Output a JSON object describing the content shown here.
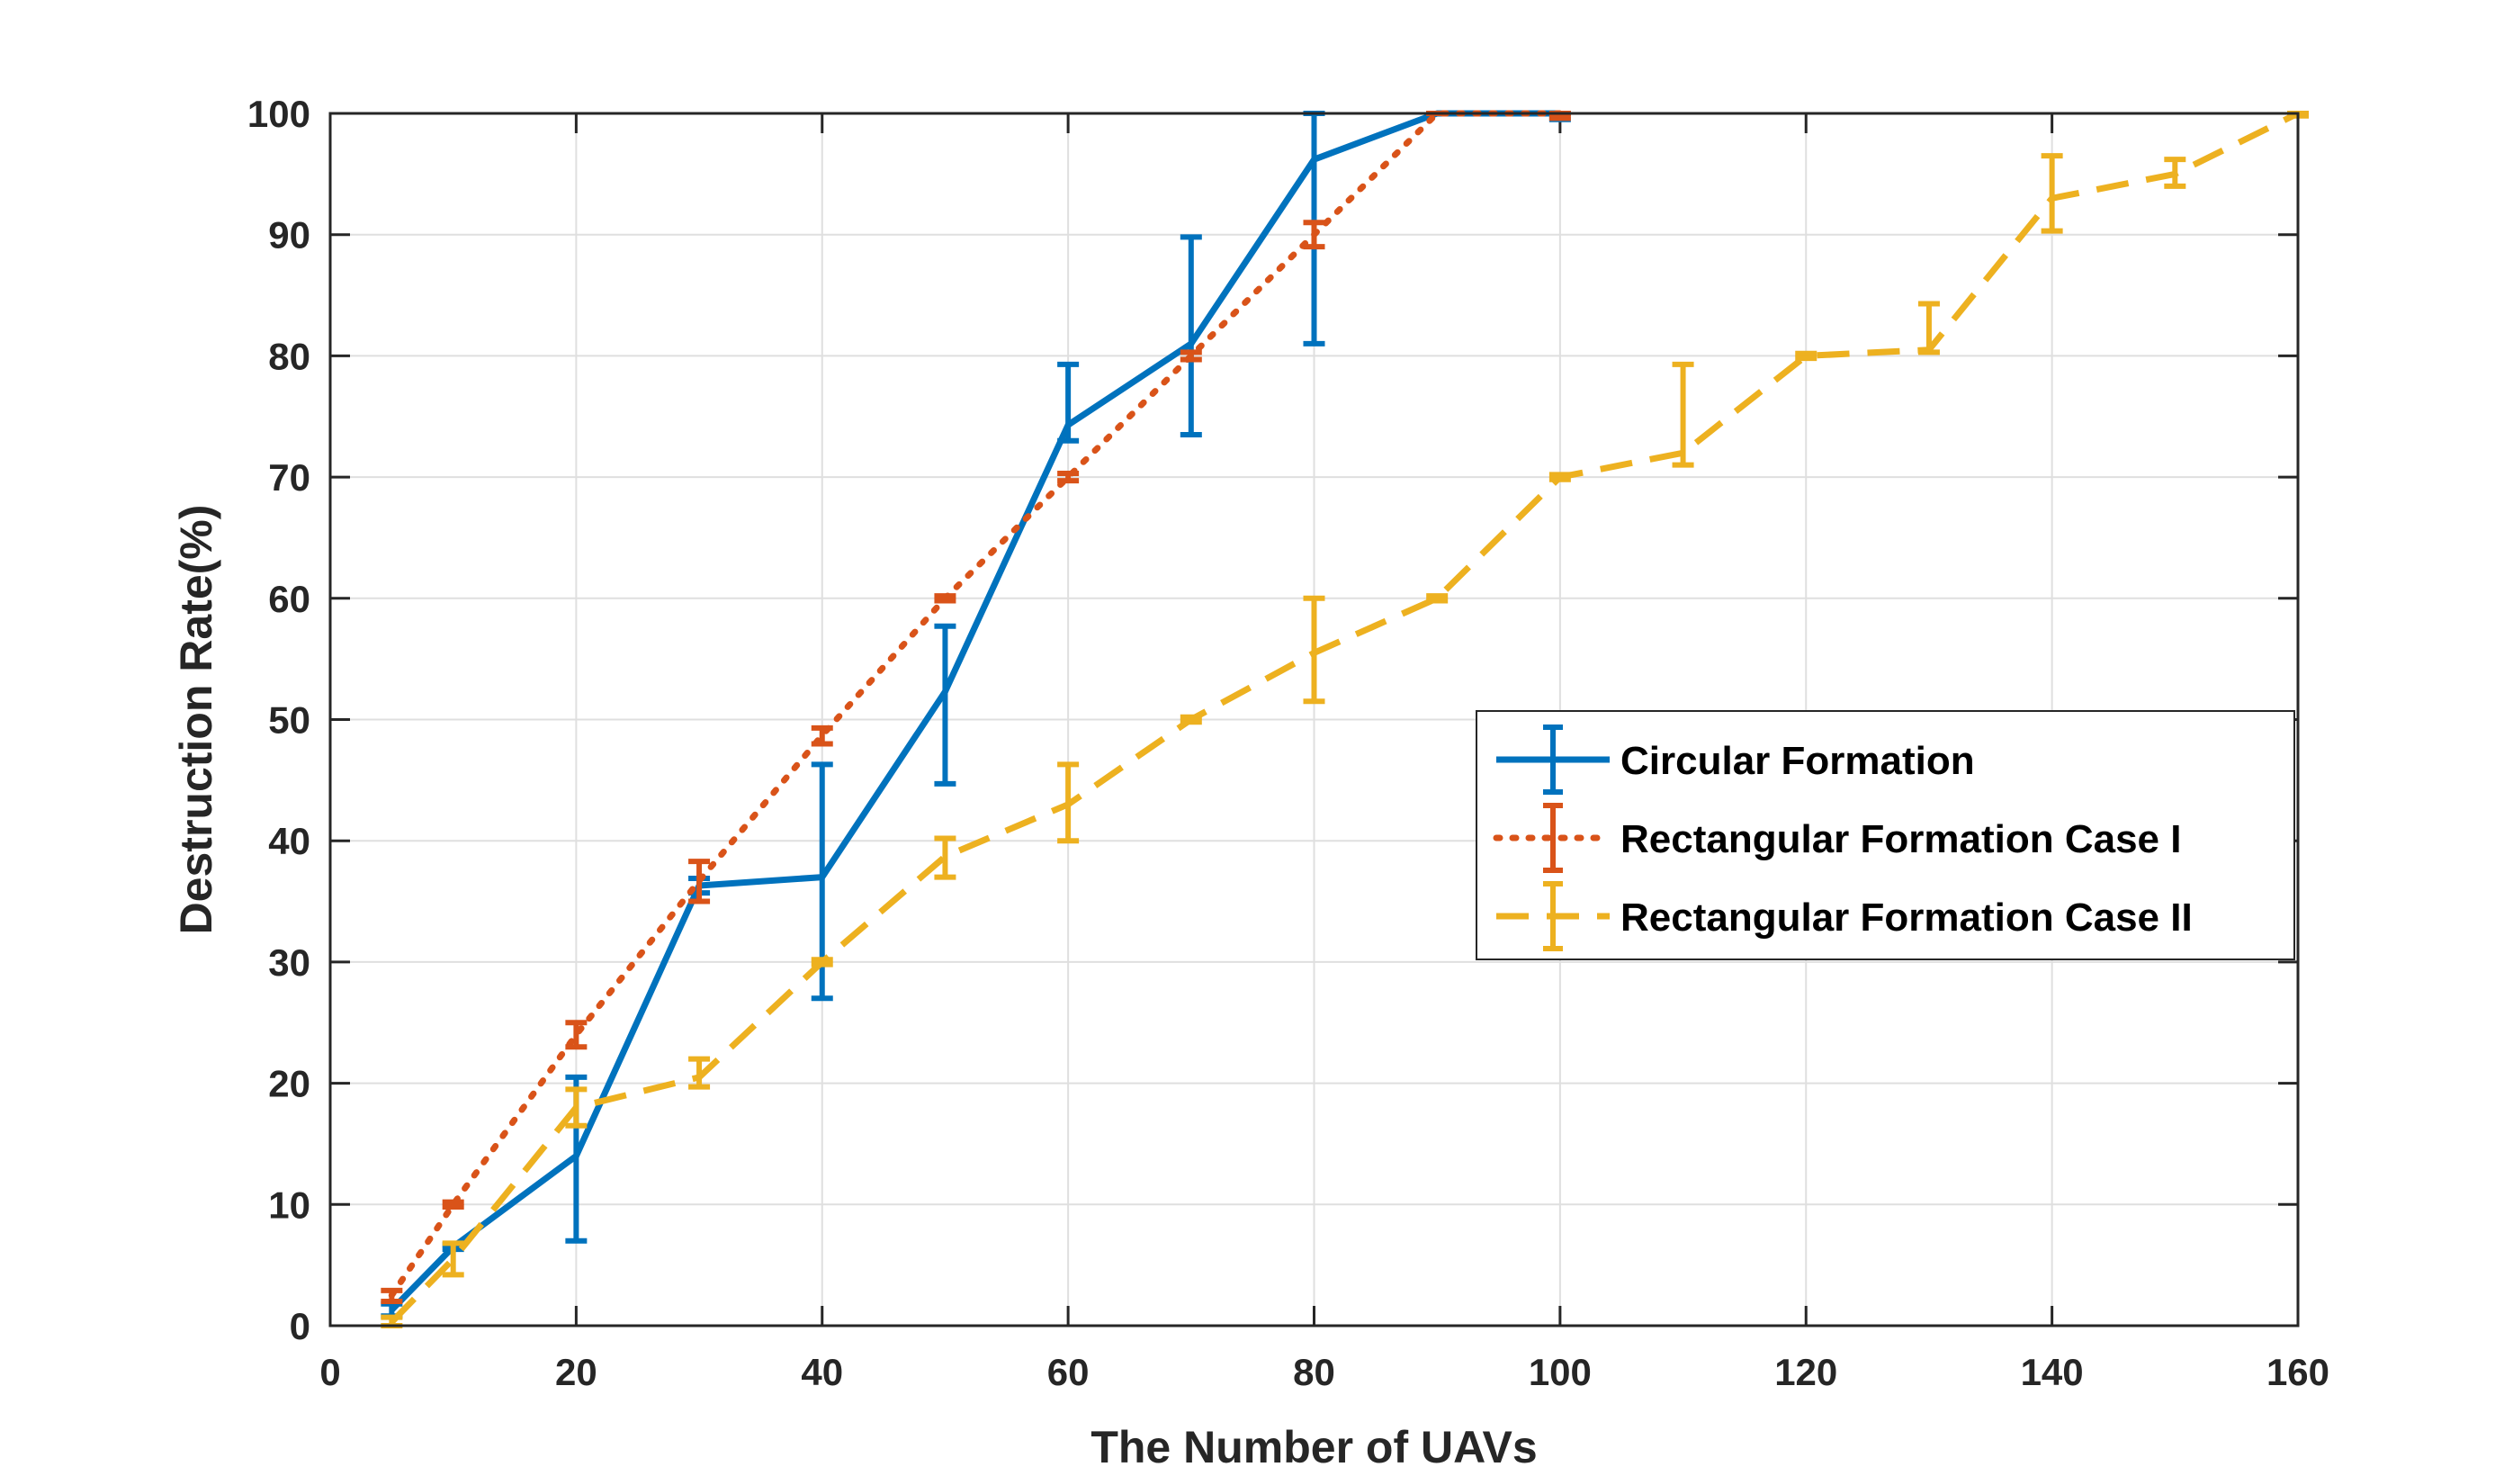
{
  "chart_data": {
    "type": "line",
    "title": "",
    "xlabel": "The Number of UAVs",
    "ylabel": "Destruction Rate(%)",
    "xlim": [
      0,
      160
    ],
    "ylim": [
      0,
      100
    ],
    "xticks": [
      "0",
      "20",
      "40",
      "60",
      "80",
      "100",
      "120",
      "140",
      "160"
    ],
    "yticks": [
      "0",
      "10",
      "20",
      "30",
      "40",
      "50",
      "60",
      "70",
      "80",
      "90",
      "100"
    ],
    "grid": true,
    "legend_position": "center-right",
    "error_bars": true,
    "series": [
      {
        "name": "Circular Formation",
        "color": "#0072BD",
        "line_style": "solid",
        "points": [
          {
            "x": 5,
            "y": 1.3,
            "low": 0.8,
            "high": 1.8
          },
          {
            "x": 10,
            "y": 6.5,
            "low": 6.3,
            "high": 6.7
          },
          {
            "x": 20,
            "y": 14.0,
            "low": 7.0,
            "high": 20.5
          },
          {
            "x": 30,
            "y": 36.3,
            "low": 35.7,
            "high": 36.9
          },
          {
            "x": 40,
            "y": 37.0,
            "low": 27.0,
            "high": 46.3
          },
          {
            "x": 50,
            "y": 52.3,
            "low": 44.7,
            "high": 57.7
          },
          {
            "x": 60,
            "y": 74.3,
            "low": 73.0,
            "high": 79.3
          },
          {
            "x": 70,
            "y": 81.0,
            "low": 73.5,
            "high": 89.8
          },
          {
            "x": 80,
            "y": 96.2,
            "low": 81.0,
            "high": 100.0
          },
          {
            "x": 90,
            "y": 100.0,
            "low": 100.0,
            "high": 100.0
          },
          {
            "x": 100,
            "y": 100.0,
            "low": 99.5,
            "high": 100.0
          }
        ]
      },
      {
        "name": "Rectangular Formation Case I",
        "color": "#D95319",
        "line_style": "dotted",
        "points": [
          {
            "x": 5,
            "y": 2.5,
            "low": 2.0,
            "high": 2.9
          },
          {
            "x": 10,
            "y": 10.0,
            "low": 9.8,
            "high": 10.2
          },
          {
            "x": 20,
            "y": 24.0,
            "low": 23.0,
            "high": 25.0
          },
          {
            "x": 30,
            "y": 36.7,
            "low": 35.0,
            "high": 38.3
          },
          {
            "x": 40,
            "y": 48.7,
            "low": 48.0,
            "high": 49.3
          },
          {
            "x": 50,
            "y": 60.0,
            "low": 59.8,
            "high": 60.2
          },
          {
            "x": 60,
            "y": 70.0,
            "low": 69.7,
            "high": 70.3
          },
          {
            "x": 70,
            "y": 80.0,
            "low": 79.7,
            "high": 80.3
          },
          {
            "x": 80,
            "y": 90.0,
            "low": 89.0,
            "high": 91.0
          },
          {
            "x": 90,
            "y": 100.0,
            "low": 100.0,
            "high": 100.0
          },
          {
            "x": 100,
            "y": 100.0,
            "low": 99.6,
            "high": 100.0
          }
        ]
      },
      {
        "name": "Rectangular Formation Case II",
        "color": "#EDB120",
        "line_style": "dashed",
        "points": [
          {
            "x": 5,
            "y": 0.3,
            "low": 0.0,
            "high": 0.7
          },
          {
            "x": 10,
            "y": 5.5,
            "low": 4.2,
            "high": 6.8
          },
          {
            "x": 20,
            "y": 18.0,
            "low": 16.5,
            "high": 19.5
          },
          {
            "x": 30,
            "y": 20.5,
            "low": 19.7,
            "high": 22.0
          },
          {
            "x": 40,
            "y": 30.0,
            "low": 29.8,
            "high": 30.2
          },
          {
            "x": 50,
            "y": 38.7,
            "low": 37.0,
            "high": 40.2
          },
          {
            "x": 60,
            "y": 43.0,
            "low": 40.0,
            "high": 46.3
          },
          {
            "x": 70,
            "y": 50.0,
            "low": 49.8,
            "high": 50.2
          },
          {
            "x": 80,
            "y": 55.5,
            "low": 51.5,
            "high": 60.0
          },
          {
            "x": 90,
            "y": 60.0,
            "low": 59.8,
            "high": 60.2
          },
          {
            "x": 100,
            "y": 70.0,
            "low": 69.8,
            "high": 70.2
          },
          {
            "x": 110,
            "y": 72.0,
            "low": 71.0,
            "high": 79.3
          },
          {
            "x": 120,
            "y": 80.0,
            "low": 79.8,
            "high": 80.2
          },
          {
            "x": 130,
            "y": 80.5,
            "low": 80.3,
            "high": 84.3
          },
          {
            "x": 140,
            "y": 93.0,
            "low": 90.3,
            "high": 96.5
          },
          {
            "x": 150,
            "y": 95.0,
            "low": 94.0,
            "high": 96.2
          },
          {
            "x": 160,
            "y": 100.0,
            "low": 99.8,
            "high": 100.0
          }
        ]
      }
    ]
  }
}
